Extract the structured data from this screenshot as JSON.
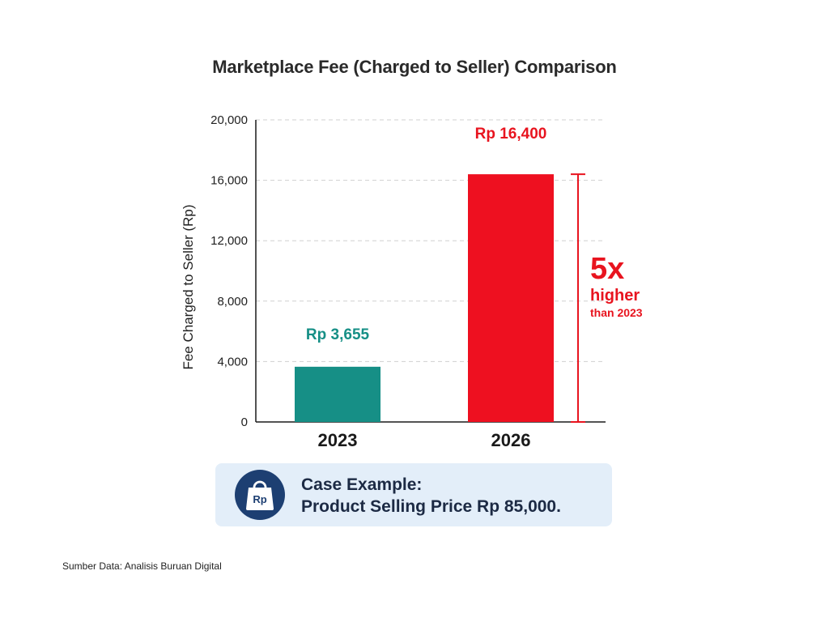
{
  "chart_data": {
    "type": "bar",
    "title": "Marketplace Fee (Charged to Seller) Comparison",
    "xlabel": "",
    "ylabel": "Fee Charged to Seller (Rp)",
    "categories": [
      "2023",
      "2026"
    ],
    "values": [
      3655,
      16400
    ],
    "data_labels": [
      "Rp 3,655",
      "Rp 16,400"
    ],
    "bar_colors": [
      "#168f86",
      "#ee1020"
    ],
    "label_colors": [
      "#168f86",
      "#e8141f"
    ],
    "ylim": [
      0,
      20000
    ],
    "yticks": [
      0,
      4000,
      8000,
      12000,
      16000,
      20000
    ],
    "ytick_labels": [
      "0",
      "4,000",
      "8,000",
      "12,000",
      "16,000",
      "20,000"
    ],
    "grid": "horizontal dashed",
    "annotation": {
      "big": "5x",
      "mid": "higher",
      "small": "than 2023",
      "color": "#e8141f"
    }
  },
  "case_example": {
    "icon": "shopping-bag-icon",
    "icon_text": "Rp",
    "line1": "Case Example:",
    "line2": "Product Selling Price Rp 85,000."
  },
  "source_note": "Sumber Data: Analisis Buruan Digital"
}
